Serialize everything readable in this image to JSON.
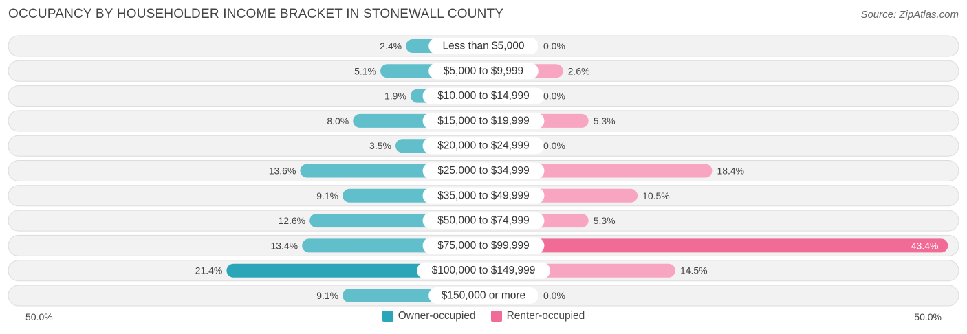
{
  "header": {
    "title": "OCCUPANCY BY HOUSEHOLDER INCOME BRACKET IN STONEWALL COUNTY",
    "source": "Source: ZipAtlas.com"
  },
  "axis": {
    "left_label": "50.0%",
    "right_label": "50.0%"
  },
  "legend": {
    "owner_label": "Owner-occupied",
    "renter_label": "Renter-occupied"
  },
  "colors": {
    "owner": "#61bfcb",
    "owner_strong": "#2aa6b8",
    "renter": "#f7a5c0",
    "renter_strong": "#f06b95"
  },
  "chart_data": {
    "type": "bar",
    "orientation": "diverging-horizontal",
    "title": "OCCUPANCY BY HOUSEHOLDER INCOME BRACKET IN STONEWALL COUNTY",
    "xlim": [
      -50,
      50
    ],
    "categories": [
      "Less than $5,000",
      "$5,000 to $9,999",
      "$10,000 to $14,999",
      "$15,000 to $19,999",
      "$20,000 to $24,999",
      "$25,000 to $34,999",
      "$35,000 to $49,999",
      "$50,000 to $74,999",
      "$75,000 to $99,999",
      "$100,000 to $149,999",
      "$150,000 or more"
    ],
    "series": [
      {
        "name": "Owner-occupied",
        "values": [
          2.4,
          5.1,
          1.9,
          8.0,
          3.5,
          13.6,
          9.1,
          12.6,
          13.4,
          21.4,
          9.1
        ],
        "labels": [
          "2.4%",
          "5.1%",
          "1.9%",
          "8.0%",
          "3.5%",
          "13.6%",
          "9.1%",
          "12.6%",
          "13.4%",
          "21.4%",
          "9.1%"
        ]
      },
      {
        "name": "Renter-occupied",
        "values": [
          0.0,
          2.6,
          0.0,
          5.3,
          0.0,
          18.4,
          10.5,
          5.3,
          43.4,
          14.5,
          0.0
        ],
        "labels": [
          "0.0%",
          "2.6%",
          "0.0%",
          "5.3%",
          "0.0%",
          "18.4%",
          "10.5%",
          "5.3%",
          "43.4%",
          "14.5%",
          "0.0%"
        ]
      }
    ]
  }
}
